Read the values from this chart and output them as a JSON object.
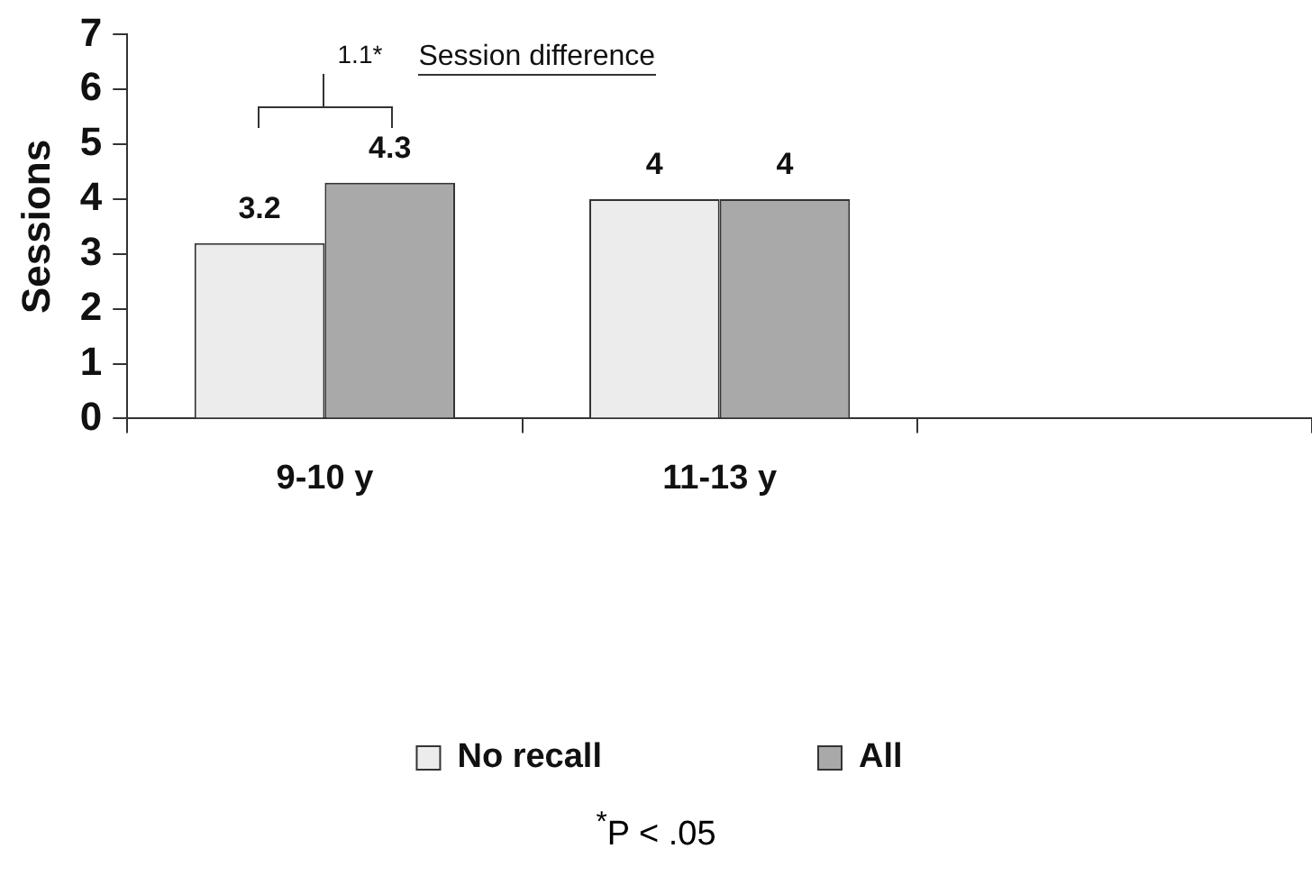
{
  "chart_data": {
    "type": "bar",
    "ylabel": "Sessions",
    "categories": [
      "9-10 y",
      "11-13 y",
      null
    ],
    "series": [
      {
        "name": "No recall",
        "color": "#ececec",
        "values": [
          3.2,
          4,
          null
        ]
      },
      {
        "name": "All",
        "color": "#a9a9a9",
        "values": [
          4.3,
          4,
          null
        ]
      }
    ],
    "ylim": [
      0,
      7
    ],
    "yticks": [
      0,
      1,
      2,
      3,
      4,
      5,
      6,
      7
    ],
    "grid": false,
    "legend": "bottom",
    "data_labels": true,
    "annotations": [
      "1.1*",
      "Session difference",
      "$^{*}$P < .05"
    ]
  }
}
